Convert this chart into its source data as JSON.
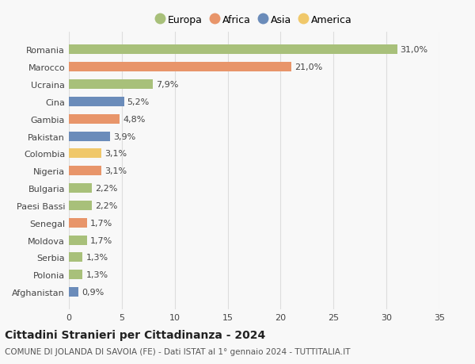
{
  "categories": [
    "Afghanistan",
    "Polonia",
    "Serbia",
    "Moldova",
    "Senegal",
    "Paesi Bassi",
    "Bulgaria",
    "Nigeria",
    "Colombia",
    "Pakistan",
    "Gambia",
    "Cina",
    "Ucraina",
    "Marocco",
    "Romania"
  ],
  "values": [
    0.9,
    1.3,
    1.3,
    1.7,
    1.7,
    2.2,
    2.2,
    3.1,
    3.1,
    3.9,
    4.8,
    5.2,
    7.9,
    21.0,
    31.0
  ],
  "labels": [
    "0,9%",
    "1,3%",
    "1,3%",
    "1,7%",
    "1,7%",
    "2,2%",
    "2,2%",
    "3,1%",
    "3,1%",
    "3,9%",
    "4,8%",
    "5,2%",
    "7,9%",
    "21,0%",
    "31,0%"
  ],
  "colors": [
    "#6b8cba",
    "#a8c07a",
    "#a8c07a",
    "#a8c07a",
    "#e8956a",
    "#a8c07a",
    "#a8c07a",
    "#e8956a",
    "#f0c86a",
    "#6b8cba",
    "#e8956a",
    "#6b8cba",
    "#a8c07a",
    "#e8956a",
    "#a8c07a"
  ],
  "legend_labels": [
    "Europa",
    "Africa",
    "Asia",
    "America"
  ],
  "legend_colors": [
    "#a8c07a",
    "#e8956a",
    "#6b8cba",
    "#f0c86a"
  ],
  "title_bold": "Cittadini Stranieri per Cittadinanza - 2024",
  "subtitle": "COMUNE DI JOLANDA DI SAVOIA (FE) - Dati ISTAT al 1° gennaio 2024 - TUTTITALIA.IT",
  "xlim": [
    0,
    35
  ],
  "xticks": [
    0,
    5,
    10,
    15,
    20,
    25,
    30,
    35
  ],
  "background_color": "#f8f8f8",
  "bar_height": 0.55,
  "grid_color": "#dddddd",
  "label_fontsize": 8,
  "tick_fontsize": 8,
  "legend_fontsize": 9,
  "title_fontsize": 10,
  "subtitle_fontsize": 7.5
}
